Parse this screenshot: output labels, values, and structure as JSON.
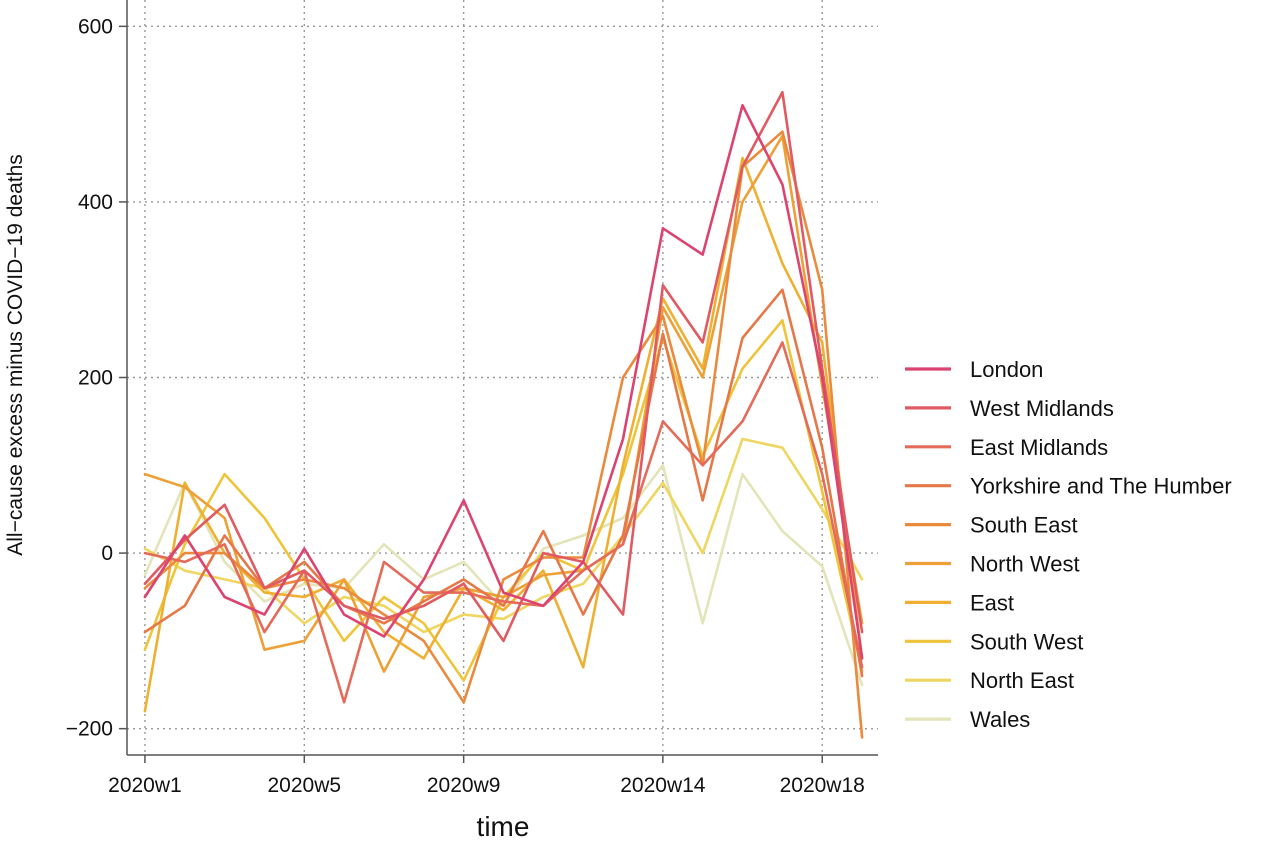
{
  "chart_data": {
    "type": "line",
    "title": "",
    "xlabel": "time",
    "ylabel": "All−cause excess minus COVID−19 deaths",
    "x": [
      1,
      2,
      3,
      4,
      5,
      6,
      7,
      8,
      9,
      10,
      11,
      12,
      13,
      14,
      15,
      16,
      17,
      18,
      19
    ],
    "x_ticks": [
      {
        "value": 1,
        "label": "2020w1"
      },
      {
        "value": 5,
        "label": "2020w5"
      },
      {
        "value": 9,
        "label": "2020w9"
      },
      {
        "value": 14,
        "label": "2020w14"
      },
      {
        "value": 18,
        "label": "2020w18"
      }
    ],
    "xlim": [
      0.55,
      19.4
    ],
    "y_ticks": [
      -200,
      0,
      200,
      400,
      600
    ],
    "ylim": [
      -230,
      630
    ],
    "grid": true,
    "legend_position": "right",
    "series": [
      {
        "name": "London",
        "color": "#db4470",
        "values": [
          -50,
          20,
          -50,
          -70,
          5,
          -70,
          -95,
          -30,
          60,
          -45,
          -60,
          -10,
          130,
          370,
          340,
          510,
          420,
          200,
          -120
        ]
      },
      {
        "name": "West Midlands",
        "color": "#e05a62",
        "values": [
          -35,
          15,
          55,
          -40,
          -20,
          -60,
          -75,
          -60,
          -35,
          -100,
          0,
          -10,
          -70,
          305,
          240,
          440,
          525,
          210,
          -90
        ]
      },
      {
        "name": "East Midlands",
        "color": "#e46a5a",
        "values": [
          0,
          -10,
          10,
          -90,
          -20,
          -170,
          -10,
          -45,
          -45,
          -55,
          -60,
          -20,
          10,
          150,
          100,
          150,
          240,
          90,
          -130
        ]
      },
      {
        "name": "Yorkshire and The Humber",
        "color": "#e67848",
        "values": [
          -90,
          -60,
          20,
          -40,
          -10,
          -60,
          -80,
          -55,
          -30,
          -60,
          25,
          -70,
          20,
          250,
          60,
          245,
          300,
          120,
          -140
        ]
      },
      {
        "name": "South East",
        "color": "#ea8a3c",
        "values": [
          -40,
          0,
          0,
          -40,
          -30,
          -40,
          -70,
          -100,
          -170,
          -30,
          -5,
          -5,
          200,
          270,
          100,
          440,
          480,
          300,
          -210
        ]
      },
      {
        "name": "North West",
        "color": "#eda035",
        "values": [
          90,
          75,
          40,
          -110,
          -100,
          -30,
          -135,
          -50,
          -40,
          -50,
          -25,
          -20,
          10,
          280,
          200,
          400,
          475,
          190,
          -80
        ]
      },
      {
        "name": "East",
        "color": "#efb032",
        "values": [
          -180,
          80,
          0,
          -45,
          -50,
          -30,
          -90,
          -120,
          -40,
          -65,
          -20,
          -130,
          100,
          290,
          210,
          450,
          330,
          240,
          -120
        ]
      },
      {
        "name": "South West",
        "color": "#eec53a",
        "values": [
          -110,
          10,
          90,
          40,
          -30,
          -100,
          -50,
          -80,
          -145,
          -50,
          0,
          -20,
          90,
          245,
          110,
          210,
          265,
          70,
          -135
        ]
      },
      {
        "name": "North East",
        "color": "#eed660",
        "values": [
          5,
          -20,
          -30,
          -40,
          -80,
          -50,
          -60,
          -90,
          -70,
          -75,
          -50,
          -35,
          20,
          80,
          0,
          130,
          120,
          50,
          -30
        ]
      },
      {
        "name": "Wales",
        "color": "#e3e4b8",
        "values": [
          -25,
          80,
          -10,
          -55,
          -35,
          -40,
          10,
          -30,
          -10,
          -60,
          5,
          20,
          40,
          100,
          -80,
          90,
          25,
          -15,
          -150
        ]
      }
    ]
  }
}
